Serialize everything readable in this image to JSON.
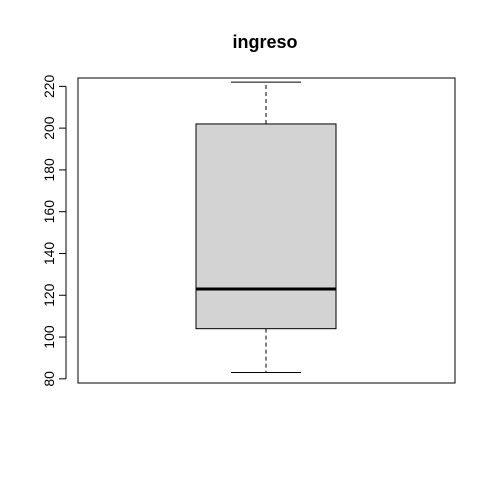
{
  "chart_data": {
    "type": "boxplot",
    "title": "ingreso",
    "xlabel": "",
    "ylabel": "",
    "ylim": [
      78,
      224
    ],
    "yticks": [
      80,
      100,
      120,
      140,
      160,
      180,
      200,
      220
    ],
    "box": {
      "whisker_low": 83,
      "q1": 104,
      "median": 123,
      "q3": 202,
      "whisker_high": 222
    },
    "box_fill": "#d3d3d3",
    "grid": false,
    "legend": "none"
  }
}
